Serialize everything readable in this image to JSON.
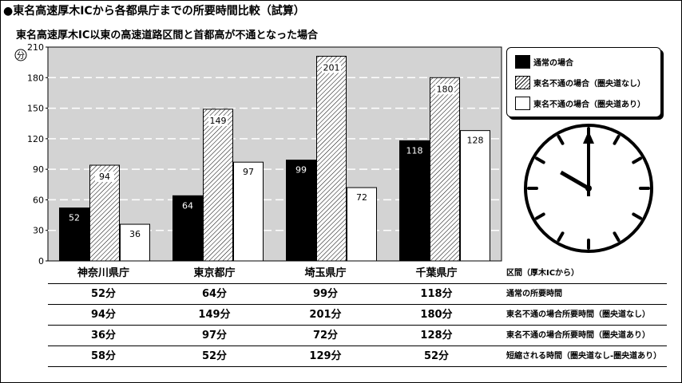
{
  "title": "●東名高速厚木ICから各都県庁までの所要時間比較（試算）",
  "subtitle": "東名高速厚木IC以東の高速道路区間と首都高が不通となった場合",
  "chart_data": {
    "type": "bar",
    "ylabel": "分",
    "ylim": [
      0,
      210
    ],
    "yticks": [
      0,
      30,
      60,
      90,
      120,
      150,
      180,
      210
    ],
    "grid": true,
    "legend_position": "right",
    "categories": [
      "神奈川県庁",
      "東京都庁",
      "埼玉県庁",
      "千葉県庁"
    ],
    "series": [
      {
        "name": "通常の場合",
        "values": [
          52,
          64,
          99,
          118
        ],
        "fill": "#000000"
      },
      {
        "name": "東名不通の場合（圏央道なし）",
        "values": [
          94,
          149,
          201,
          180
        ],
        "fill": "hatch"
      },
      {
        "name": "東名不通の場合（圏央道あり）",
        "values": [
          36,
          97,
          72,
          128
        ],
        "fill": "#ffffff"
      }
    ]
  },
  "table": {
    "header_label": "区間（厚木ICから）",
    "rows": [
      {
        "label": "通常の所要時間",
        "cells": [
          "52分",
          "64分",
          "99分",
          "118分"
        ]
      },
      {
        "label": "東名不通の場合所要時間（圏央道なし）",
        "cells": [
          "94分",
          "149分",
          "201分",
          "180分"
        ]
      },
      {
        "label": "東名不通の場合所要時間（圏央道あり）",
        "cells": [
          "36分",
          "97分",
          "72分",
          "128分"
        ]
      },
      {
        "label": "短縮される時間（圏央道なし-圏央道あり）",
        "cells": [
          "58分",
          "52分",
          "129分",
          "52分"
        ]
      }
    ]
  },
  "colors": {
    "plot_background": "#d3d3d3",
    "grid": "#ffffff",
    "bar_dark": "#000000"
  },
  "clock": {
    "icon": "clock-icon",
    "time": "10:02"
  }
}
